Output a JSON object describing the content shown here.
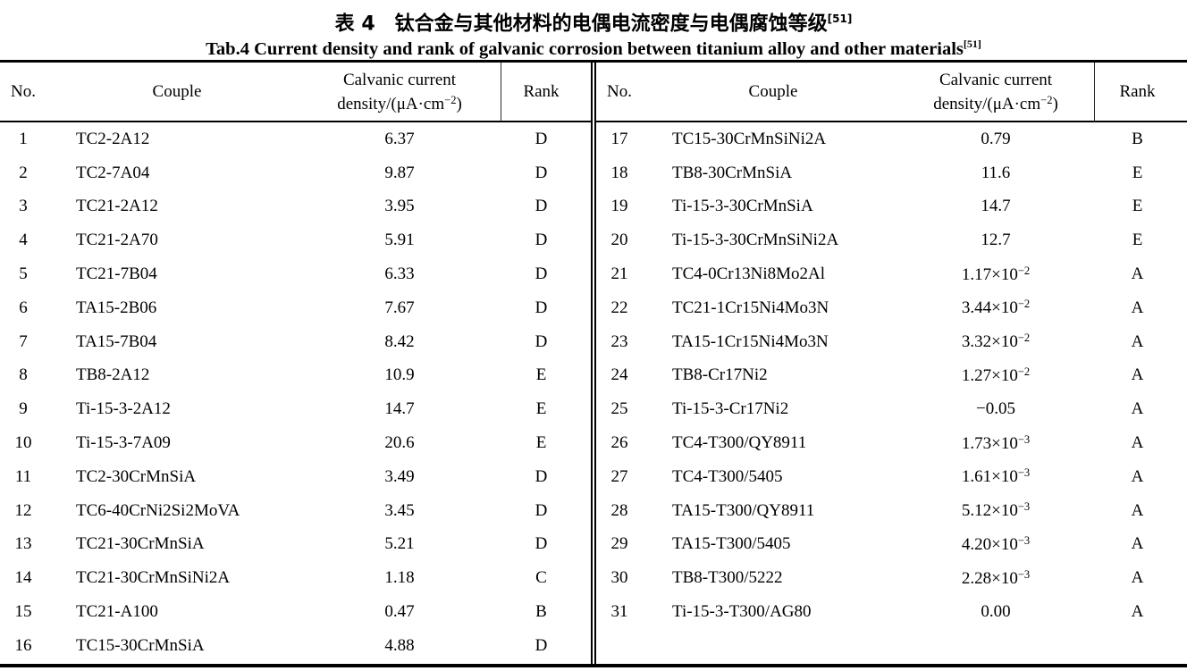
{
  "title": {
    "zh": "表 4　钛合金与其他材料的电偶电流密度与电偶腐蚀等级",
    "zh_sup": "[51]",
    "en": "Tab.4 Current density and rank of galvanic corrosion between titanium alloy and other materials",
    "en_sup": "[51]"
  },
  "columns": {
    "no": "No.",
    "couple": "Couple",
    "density_line1": "Calvanic current",
    "density_line2_prefix": "density/(μA·cm",
    "density_sup": "−2",
    "density_line2_suffix": ")",
    "rank": "Rank"
  },
  "table": {
    "left_rows": [
      {
        "no": "1",
        "couple": "TC2-2A12",
        "density": "6.37",
        "rank": "D"
      },
      {
        "no": "2",
        "couple": "TC2-7A04",
        "density": "9.87",
        "rank": "D"
      },
      {
        "no": "3",
        "couple": "TC21-2A12",
        "density": "3.95",
        "rank": "D"
      },
      {
        "no": "4",
        "couple": "TC21-2A70",
        "density": "5.91",
        "rank": "D"
      },
      {
        "no": "5",
        "couple": "TC21-7B04",
        "density": "6.33",
        "rank": "D"
      },
      {
        "no": "6",
        "couple": "TA15-2B06",
        "density": "7.67",
        "rank": "D"
      },
      {
        "no": "7",
        "couple": "TA15-7B04",
        "density": "8.42",
        "rank": "D"
      },
      {
        "no": "8",
        "couple": "TB8-2A12",
        "density": "10.9",
        "rank": "E"
      },
      {
        "no": "9",
        "couple": "Ti-15-3-2A12",
        "density": "14.7",
        "rank": "E"
      },
      {
        "no": "10",
        "couple": "Ti-15-3-7A09",
        "density": "20.6",
        "rank": "E"
      },
      {
        "no": "11",
        "couple": "TC2-30CrMnSiA",
        "density": "3.49",
        "rank": "D"
      },
      {
        "no": "12",
        "couple": "TC6-40CrNi2Si2MoVA",
        "density": "3.45",
        "rank": "D"
      },
      {
        "no": "13",
        "couple": "TC21-30CrMnSiA",
        "density": "5.21",
        "rank": "D"
      },
      {
        "no": "14",
        "couple": "TC21-30CrMnSiNi2A",
        "density": "1.18",
        "rank": "C"
      },
      {
        "no": "15",
        "couple": "TC21-A100",
        "density": "0.47",
        "rank": "B"
      },
      {
        "no": "16",
        "couple": "TC15-30CrMnSiA",
        "density": "4.88",
        "rank": "D"
      }
    ],
    "right_rows": [
      {
        "no": "17",
        "couple": "TC15-30CrMnSiNi2A",
        "density": "0.79",
        "rank": "B"
      },
      {
        "no": "18",
        "couple": "TB8-30CrMnSiA",
        "density": "11.6",
        "rank": "E"
      },
      {
        "no": "19",
        "couple": "Ti-15-3-30CrMnSiA",
        "density": "14.7",
        "rank": "E"
      },
      {
        "no": "20",
        "couple": "Ti-15-3-30CrMnSiNi2A",
        "density": "12.7",
        "rank": "E"
      },
      {
        "no": "21",
        "couple": "TC4-0Cr13Ni8Mo2Al",
        "density": "1.17×10^−2",
        "rank": "A"
      },
      {
        "no": "22",
        "couple": "TC21-1Cr15Ni4Mo3N",
        "density": "3.44×10^−2",
        "rank": "A"
      },
      {
        "no": "23",
        "couple": "TA15-1Cr15Ni4Mo3N",
        "density": "3.32×10^−2",
        "rank": "A"
      },
      {
        "no": "24",
        "couple": "TB8-Cr17Ni2",
        "density": "1.27×10^−2",
        "rank": "A"
      },
      {
        "no": "25",
        "couple": "Ti-15-3-Cr17Ni2",
        "density": "−0.05",
        "rank": "A"
      },
      {
        "no": "26",
        "couple": "TC4-T300/QY8911",
        "density": "1.73×10^−3",
        "rank": "A"
      },
      {
        "no": "27",
        "couple": "TC4-T300/5405",
        "density": "1.61×10^−3",
        "rank": "A"
      },
      {
        "no": "28",
        "couple": "TA15-T300/QY8911",
        "density": "5.12×10^−3",
        "rank": "A"
      },
      {
        "no": "29",
        "couple": "TA15-T300/5405",
        "density": "4.20×10^−3",
        "rank": "A"
      },
      {
        "no": "30",
        "couple": "TB8-T300/5222",
        "density": "2.28×10^−3",
        "rank": "A"
      },
      {
        "no": "31",
        "couple": "Ti-15-3-T300/AG80",
        "density": "0.00",
        "rank": "A"
      }
    ]
  }
}
